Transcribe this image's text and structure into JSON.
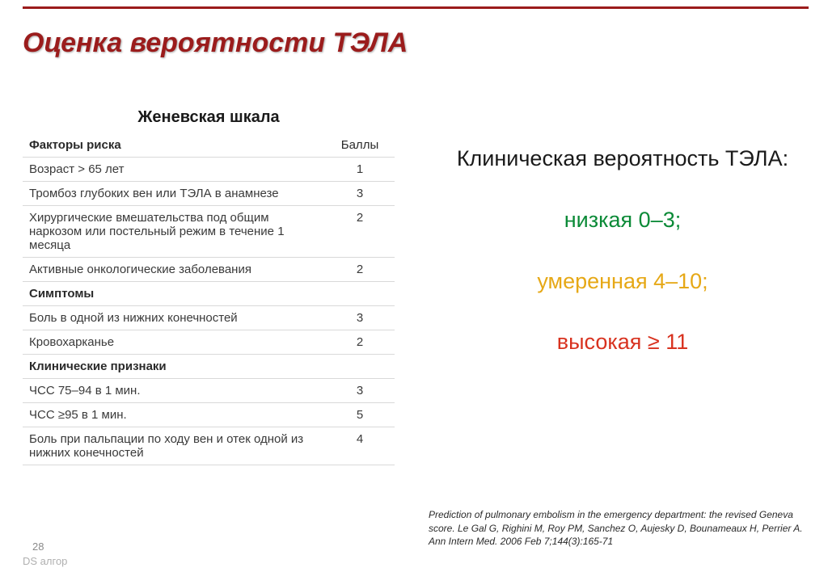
{
  "colors": {
    "rule": "#9b1c1c",
    "title": "#9b1c1c",
    "text": "#3a3a3a",
    "low": "#0b8a37",
    "moderate": "#e6a816",
    "high": "#d8321f",
    "border": "#d9d9d9",
    "muted": "#8a8a8a"
  },
  "title": "Оценка вероятности ТЭЛА",
  "table": {
    "title": "Женевская шкала",
    "col_factor": "Факторы риска",
    "col_score": "Баллы",
    "rows": [
      {
        "label": "Возраст > 65 лет",
        "score": "1"
      },
      {
        "label": "Тромбоз глубоких вен или ТЭЛА в анамнезе",
        "score": "3"
      },
      {
        "label": "Хирургические вмешательства под общим наркозом или постельный режим в течение 1 месяца",
        "score": "2"
      },
      {
        "label": "Активные онкологические заболевания",
        "score": "2"
      }
    ],
    "section2": "Симптомы",
    "rows2": [
      {
        "label": "Боль в одной из нижних конечностей",
        "score": "3"
      },
      {
        "label": "Кровохарканье",
        "score": "2"
      }
    ],
    "section3": "Клинические признаки",
    "rows3": [
      {
        "label": "ЧСС 75–94 в 1 мин.",
        "score": "3"
      },
      {
        "label": "ЧСС ≥95 в 1 мин.",
        "score": "5"
      },
      {
        "label": "Боль при пальпации по ходу вен и отек одной из нижних конечностей",
        "score": "4"
      }
    ]
  },
  "right": {
    "heading": "Клиническая вероятность ТЭЛА:",
    "low": "низкая 0–3;",
    "moderate": "умеренная 4–10;",
    "high": "высокая ≥ 11"
  },
  "citation": "Prediction of pulmonary embolism in the emergency department: the revised Geneva score. Le Gal G, Righini M, Roy PM, Sanchez O, Aujesky D, Bounameaux H, Perrier A. Ann Intern Med. 2006 Feb 7;144(3):165-71",
  "slide_number": "28",
  "footer_label": "DS алгор"
}
